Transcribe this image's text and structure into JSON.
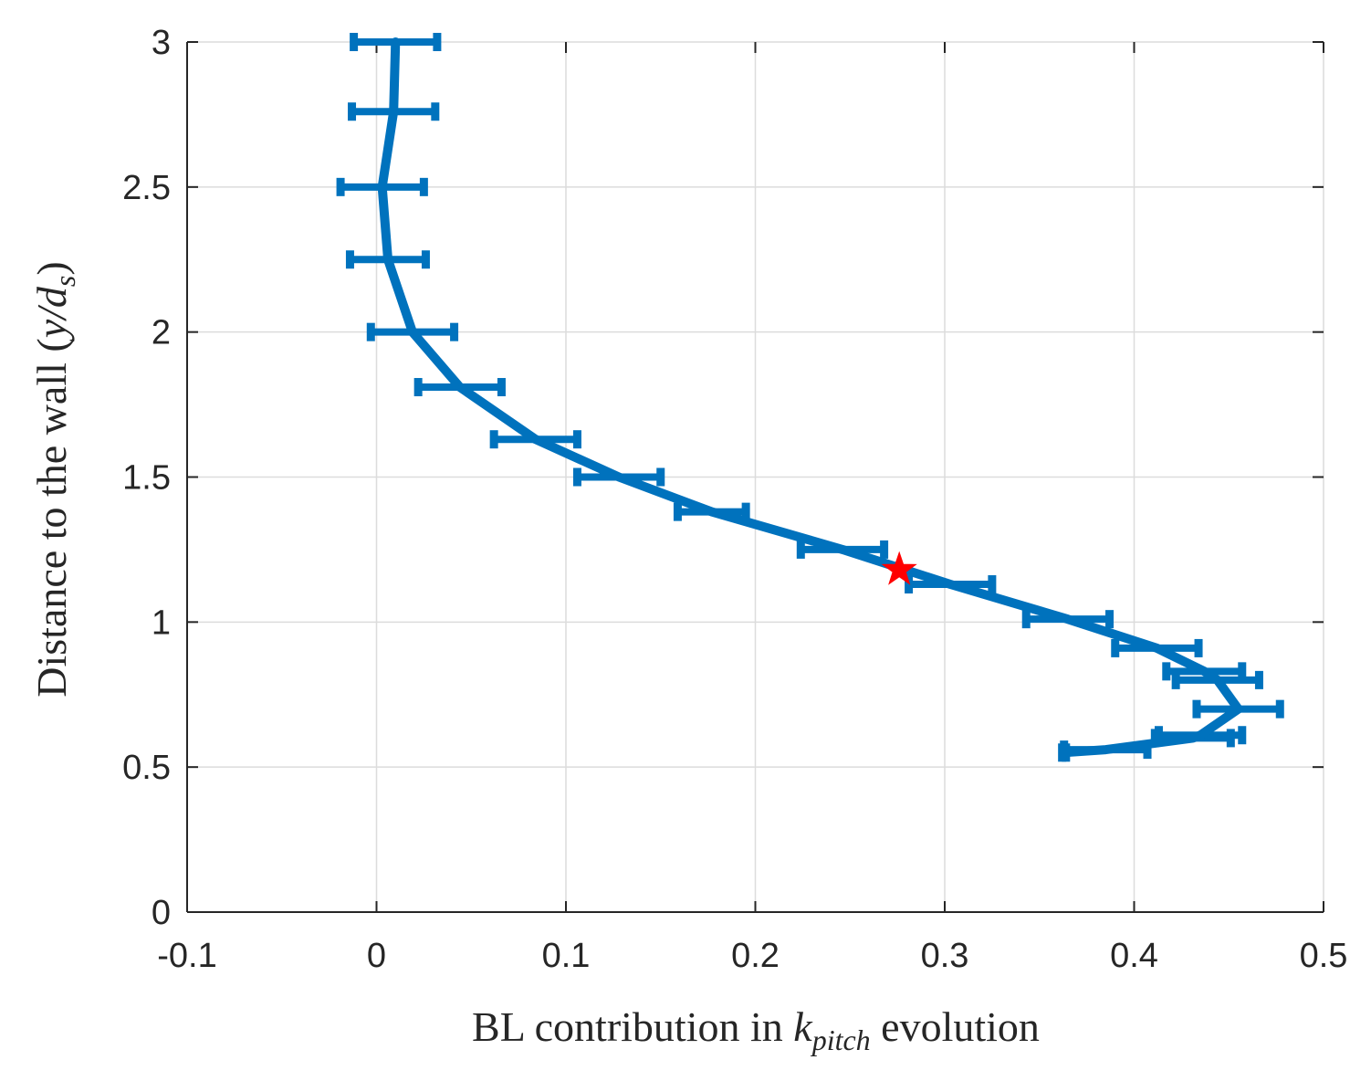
{
  "chart_data": {
    "type": "line",
    "title": "",
    "xlabel": {
      "prefix": "BL contribution in ",
      "symbol": "k",
      "subscript": "pitch",
      "suffix": " evolution"
    },
    "ylabel": {
      "prefix": "Distance to the wall (",
      "symbol": "y/d",
      "subscript": "s",
      "suffix": ")"
    },
    "xlim": [
      -0.1,
      0.5
    ],
    "ylim": [
      0,
      3
    ],
    "xticks": [
      "-0.1",
      "0",
      "0.1",
      "0.2",
      "0.3",
      "0.4",
      "0.5"
    ],
    "yticks": [
      "0",
      "0.5",
      "1",
      "1.5",
      "2",
      "2.5",
      "3"
    ],
    "grid": true,
    "series": [
      {
        "color": "#0072BD",
        "points": [
          {
            "x": 0.01,
            "y": 3.0,
            "err": 0.022
          },
          {
            "x": 0.009,
            "y": 2.76,
            "err": 0.022
          },
          {
            "x": 0.003,
            "y": 2.5,
            "err": 0.022
          },
          {
            "x": 0.006,
            "y": 2.25,
            "err": 0.02
          },
          {
            "x": 0.019,
            "y": 2.0,
            "err": 0.022
          },
          {
            "x": 0.044,
            "y": 1.81,
            "err": 0.022
          },
          {
            "x": 0.084,
            "y": 1.63,
            "err": 0.022
          },
          {
            "x": 0.128,
            "y": 1.5,
            "err": 0.022
          },
          {
            "x": 0.177,
            "y": 1.38,
            "err": 0.018
          },
          {
            "x": 0.246,
            "y": 1.25,
            "err": 0.022
          },
          {
            "x": 0.303,
            "y": 1.13,
            "err": 0.022
          },
          {
            "x": 0.365,
            "y": 1.01,
            "err": 0.022
          },
          {
            "x": 0.412,
            "y": 0.91,
            "err": 0.022
          },
          {
            "x": 0.437,
            "y": 0.83,
            "err": 0.02
          },
          {
            "x": 0.444,
            "y": 0.8,
            "err": 0.022
          },
          {
            "x": 0.455,
            "y": 0.7,
            "err": 0.022
          },
          {
            "x": 0.435,
            "y": 0.61,
            "err": 0.022
          },
          {
            "x": 0.431,
            "y": 0.6,
            "err": 0.02
          },
          {
            "x": 0.385,
            "y": 0.56,
            "err": 0.022
          },
          {
            "x": 0.363,
            "y": 0.55,
            "err": 0.001
          }
        ]
      }
    ],
    "marker": {
      "x": 0.276,
      "y": 1.18,
      "shape": "star",
      "color": "#ff0000"
    }
  }
}
